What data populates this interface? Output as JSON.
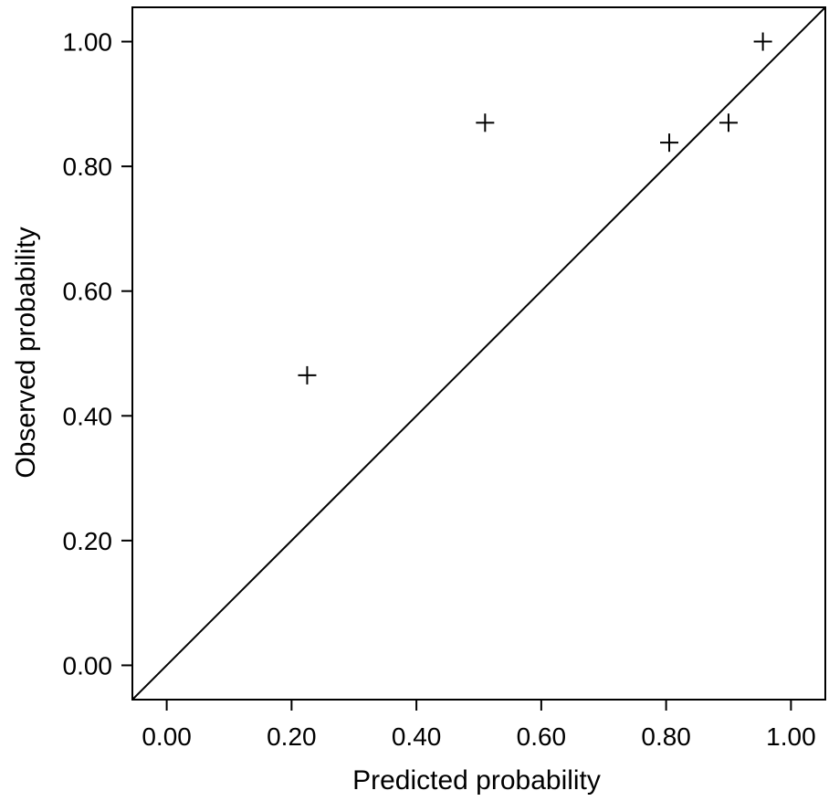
{
  "chart_data": {
    "type": "scatter",
    "title": "",
    "xlabel": "Predicted probability",
    "ylabel": "Observed probability",
    "xlim": [
      -0.055,
      1.055
    ],
    "ylim": [
      -0.055,
      1.055
    ],
    "x_ticks": [
      0.0,
      0.2,
      0.4,
      0.6,
      0.8,
      1.0
    ],
    "y_ticks": [
      0.0,
      0.2,
      0.4,
      0.6,
      0.8,
      1.0
    ],
    "x_tick_labels": [
      "0.00",
      "0.20",
      "0.40",
      "0.60",
      "0.80",
      "1.00"
    ],
    "y_tick_labels": [
      "0.00",
      "0.20",
      "0.40",
      "0.60",
      "0.80",
      "1.00"
    ],
    "marker": "plus",
    "grid": false,
    "reference_line": {
      "type": "diagonal",
      "slope": 1,
      "intercept": 0
    },
    "series": [
      {
        "points": [
          {
            "x": 0.225,
            "y": 0.465
          },
          {
            "x": 0.51,
            "y": 0.87
          },
          {
            "x": 0.805,
            "y": 0.838
          },
          {
            "x": 0.9,
            "y": 0.87
          },
          {
            "x": 0.955,
            "y": 1.0
          }
        ]
      }
    ],
    "colors": {
      "marker": "#000000",
      "axis": "#000000",
      "line": "#000000"
    }
  }
}
